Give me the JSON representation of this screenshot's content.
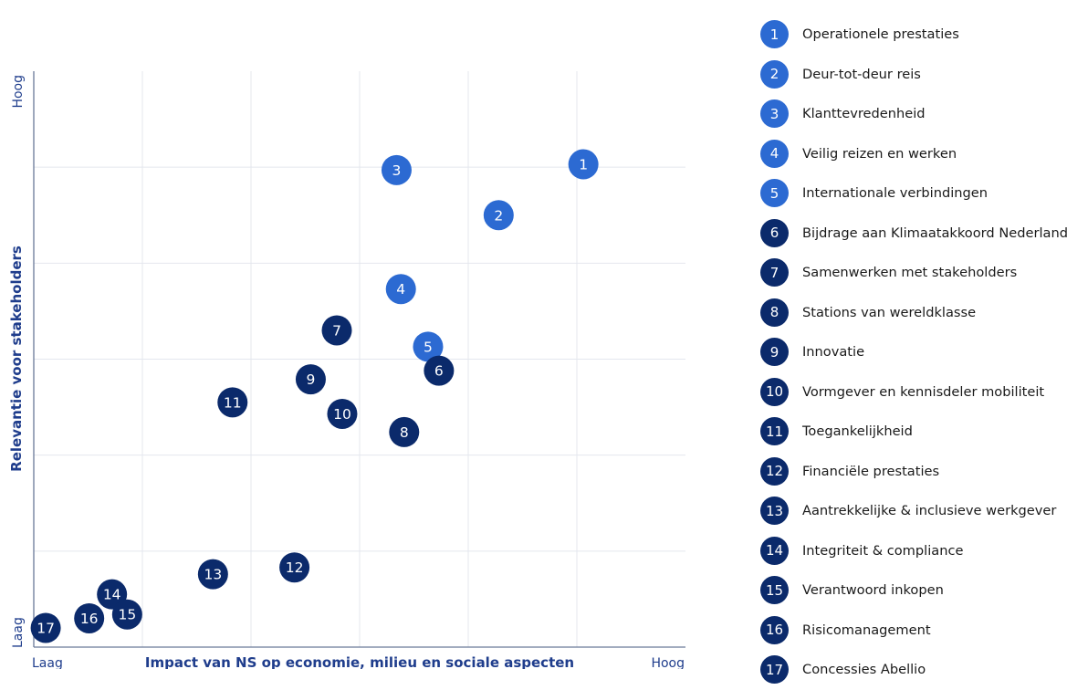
{
  "colors": {
    "light": "#2c6ad2",
    "dark": "#0b2a6b",
    "axis_text": "#1f3d8c",
    "grid": "#e4e7ee",
    "axis_line": "#6a7a99"
  },
  "axes": {
    "x_label": "Impact van NS op economie, milieu en sociale aspecten",
    "x_low": "Laag",
    "x_high": "Hoog",
    "y_label": "Relevantie voor stakeholders",
    "y_low": "Laag",
    "y_high": "Hoog"
  },
  "chart_data": {
    "type": "scatter",
    "title": "",
    "xlabel": "Impact van NS op economie, milieu en sociale aspecten",
    "ylabel": "Relevantie voor stakeholders",
    "xlim": [
      0,
      6
    ],
    "ylim": [
      0,
      6
    ],
    "grid": true,
    "legend_position": "right",
    "points": [
      {
        "id": "1",
        "label": "Operationele prestaties",
        "x": 5.06,
        "y": 5.03,
        "shade": "light"
      },
      {
        "id": "2",
        "label": "Deur-tot-deur reis",
        "x": 4.28,
        "y": 4.5,
        "shade": "light"
      },
      {
        "id": "3",
        "label": "Klanttevredenheid",
        "x": 3.34,
        "y": 4.97,
        "shade": "light"
      },
      {
        "id": "4",
        "label": "Veilig reizen en werken",
        "x": 3.38,
        "y": 3.73,
        "shade": "light"
      },
      {
        "id": "5",
        "label": "Internationale verbindingen",
        "x": 3.63,
        "y": 3.13,
        "shade": "light"
      },
      {
        "id": "6",
        "label": "Bijdrage aan Klimaatakkoord Nederland",
        "x": 3.73,
        "y": 2.88,
        "shade": "dark"
      },
      {
        "id": "7",
        "label": "Samenwerken met stakeholders",
        "x": 2.79,
        "y": 3.3,
        "shade": "dark"
      },
      {
        "id": "8",
        "label": "Stations van wereldklasse",
        "x": 3.41,
        "y": 2.24,
        "shade": "dark"
      },
      {
        "id": "9",
        "label": "Innovatie",
        "x": 2.55,
        "y": 2.79,
        "shade": "dark"
      },
      {
        "id": "10",
        "label": "Vormgever en kennisdeler mobiliteit",
        "x": 2.84,
        "y": 2.43,
        "shade": "dark"
      },
      {
        "id": "11",
        "label": "Toegankelijkheid",
        "x": 1.83,
        "y": 2.55,
        "shade": "dark"
      },
      {
        "id": "12",
        "label": "Financiële prestaties",
        "x": 2.4,
        "y": 0.83,
        "shade": "dark"
      },
      {
        "id": "13",
        "label": "Aantrekkelijke & inclusieve werkgever",
        "x": 1.65,
        "y": 0.76,
        "shade": "dark"
      },
      {
        "id": "14",
        "label": "Integriteit & compliance",
        "x": 0.72,
        "y": 0.55,
        "shade": "dark"
      },
      {
        "id": "15",
        "label": "Verantwoord inkopen",
        "x": 0.86,
        "y": 0.34,
        "shade": "dark"
      },
      {
        "id": "16",
        "label": "Risicomanagement",
        "x": 0.51,
        "y": 0.3,
        "shade": "dark"
      },
      {
        "id": "17",
        "label": "Concessies Abellio",
        "x": 0.11,
        "y": 0.2,
        "shade": "dark"
      }
    ]
  }
}
